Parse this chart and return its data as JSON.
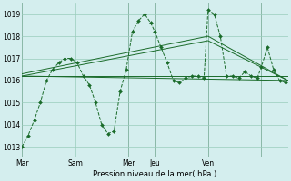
{
  "background_color": "#d4eeee",
  "grid_color": "#99ccbb",
  "line_color": "#1a6b2a",
  "marker_color": "#1a6b2a",
  "xlabel": "Pression niveau de la mer( hPa )",
  "ylim": [
    1012.5,
    1019.5
  ],
  "yticks": [
    1013,
    1014,
    1015,
    1016,
    1017,
    1018,
    1019
  ],
  "xlim": [
    0,
    260
  ],
  "day_positions": [
    0,
    52,
    104,
    130,
    182,
    234
  ],
  "day_labels": [
    "Mar",
    "Sam",
    "Mer",
    "Jeu",
    "Ven",
    ""
  ],
  "day_vlines": [
    0,
    104,
    130,
    182,
    234
  ],
  "series_detail": {
    "x": [
      0,
      6,
      12,
      18,
      24,
      30,
      36,
      42,
      48,
      54,
      60,
      66,
      72,
      78,
      84,
      90,
      96,
      102,
      108,
      114,
      120,
      126,
      130,
      136,
      142,
      148,
      154,
      160,
      166,
      172,
      178,
      182,
      188,
      194,
      200,
      206,
      212,
      218,
      224,
      230,
      234,
      240,
      246,
      252,
      258
    ],
    "y": [
      1013.0,
      1013.5,
      1014.2,
      1015.0,
      1016.0,
      1016.5,
      1016.8,
      1017.0,
      1017.0,
      1016.8,
      1016.2,
      1015.8,
      1015.0,
      1014.0,
      1013.6,
      1013.7,
      1015.5,
      1016.5,
      1018.2,
      1018.7,
      1019.0,
      1018.6,
      1018.2,
      1017.5,
      1016.8,
      1016.0,
      1015.9,
      1016.1,
      1016.2,
      1016.2,
      1016.1,
      1019.2,
      1019.0,
      1018.0,
      1016.2,
      1016.2,
      1016.1,
      1016.4,
      1016.2,
      1016.1,
      1016.6,
      1017.5,
      1016.5,
      1016.0,
      1015.9
    ]
  },
  "trend1": {
    "x": [
      0,
      260
    ],
    "y": [
      1016.2,
      1016.2
    ]
  },
  "trend2": {
    "x": [
      0,
      260
    ],
    "y": [
      1016.2,
      1016.0
    ]
  },
  "trend3": {
    "x": [
      0,
      182,
      260
    ],
    "y": [
      1016.3,
      1018.0,
      1016.0
    ]
  },
  "trend4": {
    "x": [
      0,
      182,
      260
    ],
    "y": [
      1016.2,
      1017.8,
      1016.0
    ]
  },
  "figsize": [
    3.2,
    2.0
  ],
  "dpi": 100
}
